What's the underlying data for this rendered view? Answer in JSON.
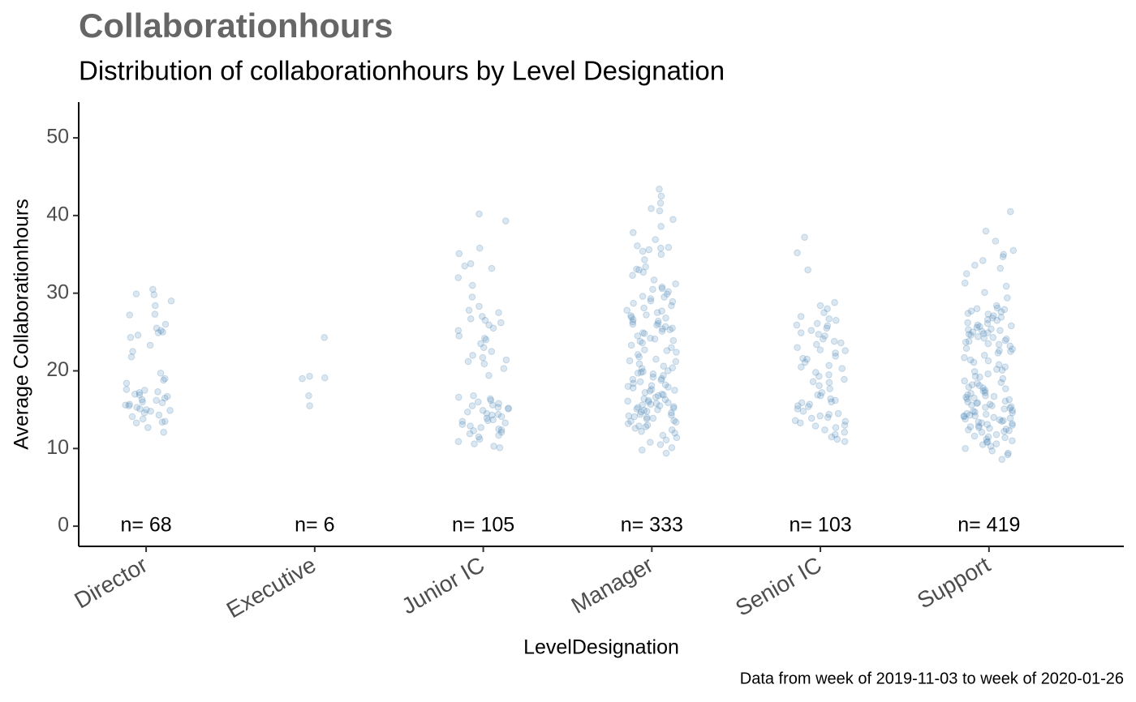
{
  "chart_data": {
    "type": "strip",
    "title": "Collaborationhours",
    "subtitle": "Distribution of collaborationhours by Level Designation",
    "y_label": "Average Collaborationhours",
    "x_label": "LevelDesignation",
    "caption": "Data from week of 2019-11-03 to week of 2020-01-26",
    "color": "#4682b4",
    "ylim": [
      -2.6,
      54.6
    ],
    "yticks": [
      0,
      10,
      20,
      30,
      40,
      50
    ],
    "categories": [
      "Director",
      "Executive",
      "Junior IC",
      "Manager",
      "Senior IC",
      "Support"
    ],
    "n_labels": [
      "n= 68",
      "n= 6",
      "n= 105",
      "n= 333",
      "n= 103",
      "n= 419"
    ],
    "points": [
      [
        29.8,
        29.9,
        30.5,
        29,
        28.4,
        27.3,
        27.2,
        26,
        25.5,
        25,
        24.9,
        24.6,
        25.2,
        24.3,
        23.3,
        22.5,
        21.8,
        19.7,
        19,
        18.8,
        18.4,
        17.5,
        17.3,
        17.2,
        17,
        16.9,
        16.7,
        16.5,
        16.3,
        16,
        15.9,
        15.7,
        15.5,
        15.3,
        15.1,
        15,
        14.9,
        14.6,
        14.3,
        14.1,
        13.8,
        13.5,
        13.4,
        13.3,
        12.7,
        12.1,
        16.2,
        17.6,
        14.8,
        15.6
      ],
      [
        24.3,
        19.3,
        19.1,
        19,
        16.8,
        15.5
      ],
      [
        40.2,
        39.3,
        35.8,
        35.1,
        33.8,
        33.5,
        33.2,
        32,
        31,
        29.5,
        28.3,
        27.8,
        27.5,
        27,
        26.5,
        26.2,
        25.9,
        25.5,
        24.5,
        24,
        23.5,
        23,
        22.5,
        22,
        21.7,
        21.4,
        21.2,
        20.9,
        20.3,
        19.4,
        16.6,
        16.4,
        16.2,
        16,
        15.8,
        15.6,
        15.5,
        15.3,
        15.1,
        14.9,
        14.7,
        14.5,
        14.3,
        14.1,
        13.9,
        13.7,
        13.5,
        13.3,
        13.1,
        12.9,
        12.7,
        12.5,
        12.3,
        12.1,
        11.9,
        11.7,
        11.5,
        11.2,
        10.9,
        10.6,
        10.3,
        10.1,
        14.4,
        15.2,
        13.6,
        12.4,
        16.8,
        25.2,
        26.7,
        24.2
      ],
      [
        43.4,
        42.5,
        41.6,
        40.9,
        40.6,
        39.5,
        38.6,
        37.8,
        36.9,
        36.1,
        35.8,
        35.6,
        35.4,
        35,
        34.3,
        33.4,
        33,
        32.7,
        32.3,
        31.7,
        31.2,
        30.8,
        30.5,
        30.2,
        29.9,
        29.6,
        29.3,
        29,
        28.7,
        28.4,
        28.1,
        27.8,
        27.5,
        27.2,
        26.9,
        26.6,
        26.3,
        26,
        25.7,
        25.4,
        25.1,
        24.8,
        24.5,
        24.2,
        23.9,
        23.6,
        23.3,
        23,
        22.7,
        22.4,
        22.1,
        21.8,
        21.5,
        21.2,
        20.9,
        20.6,
        20.3,
        20,
        19.8,
        19.6,
        19.4,
        19.2,
        19,
        18.8,
        18.6,
        18.4,
        18.2,
        18,
        17.8,
        17.6,
        17.4,
        17.2,
        17,
        16.8,
        16.6,
        16.4,
        16.2,
        16,
        15.8,
        15.6,
        15.4,
        15.2,
        15,
        14.8,
        14.6,
        14.4,
        14.2,
        14,
        13.8,
        13.6,
        13.4,
        13.2,
        13,
        12.8,
        12.6,
        12.4,
        12.2,
        12,
        11.7,
        11.4,
        11.1,
        10.8,
        10.5,
        10.1,
        9.8,
        9.4,
        25.9,
        26.4,
        24.1,
        27.1,
        28.9,
        29.5,
        16.1,
        15.5,
        14.7,
        15.9,
        16.9,
        17.5,
        13.9,
        14.3,
        15.1,
        18.9,
        19.7,
        20.4,
        22.6,
        23.8,
        24.9,
        25.3,
        26.8,
        27.7,
        30.6,
        33.1,
        35.9,
        17.9,
        16.3,
        15.3,
        14.1,
        13.5,
        12.9,
        14.9,
        15.7,
        18.1,
        21.3,
        19.9,
        26.1,
        25.5
      ],
      [
        37.2,
        35.2,
        33,
        28.8,
        28.4,
        28,
        27.5,
        27,
        26.5,
        26.1,
        25.8,
        25.5,
        25.2,
        24.9,
        24.5,
        24.1,
        23.8,
        23.4,
        23,
        22.6,
        22.3,
        21.9,
        21.5,
        21.1,
        20.7,
        20.3,
        19.8,
        19.3,
        18.9,
        18.5,
        18.1,
        17.7,
        17.2,
        16.8,
        16.4,
        16,
        15.7,
        15.4,
        15.1,
        14.8,
        14.5,
        14.2,
        13.9,
        13.6,
        13.3,
        13,
        12.7,
        12.4,
        12.1,
        11.8,
        11.5,
        11.2,
        10.9,
        14,
        14.4,
        15.9,
        16.2,
        18.6,
        19.5,
        22.7,
        23.6,
        24.7,
        25.9,
        26.7,
        20.5,
        21.6,
        13.5,
        12.9,
        16.9,
        15.5
      ],
      [
        40.5,
        38,
        36.7,
        35.5,
        35,
        34.7,
        34.2,
        33.6,
        33.2,
        32.5,
        31.3,
        30.9,
        30.1,
        29.4,
        28.4,
        28,
        27.7,
        27.4,
        27.1,
        26.8,
        26.5,
        26.2,
        25.9,
        25.6,
        25.3,
        25,
        24.7,
        24.4,
        24.1,
        23.8,
        23.5,
        23.2,
        22.9,
        22.6,
        22.3,
        22,
        21.7,
        21.4,
        21.1,
        20.8,
        20.5,
        20.2,
        19.9,
        19.6,
        19.3,
        19,
        18.7,
        18.4,
        18.1,
        17.8,
        17.5,
        17.2,
        16.9,
        16.6,
        16.3,
        16,
        15.7,
        15.4,
        15.1,
        14.8,
        14.5,
        14.2,
        13.9,
        13.6,
        13.3,
        13,
        12.7,
        12.4,
        12.1,
        11.8,
        11.5,
        11.2,
        10.9,
        10.6,
        10.3,
        10,
        9.7,
        9.4,
        8.6,
        9.2,
        25.1,
        24.9,
        24.6,
        25.4,
        25.7,
        26.1,
        27.9,
        27.3,
        24.2,
        23.9,
        22.8,
        21.3,
        17.4,
        16.8,
        16.1,
        15.5,
        15.2,
        14.9,
        14.6,
        14.3,
        14,
        13.7,
        13.4,
        13.1,
        12.8,
        12.5,
        15.9,
        16.4,
        17.1,
        17.7,
        18.2,
        14.1,
        13.5,
        12.9,
        12.3,
        11.6,
        11,
        10.5,
        14.7,
        15.3,
        16.5,
        24.8,
        25.2,
        26.6,
        27.6,
        28.1,
        23.4,
        22.5,
        20.1,
        19.2,
        18.5,
        17.9,
        16.7,
        15.8,
        14.4,
        13.8,
        13.2,
        12.6,
        12.2,
        11.4,
        10.8,
        26.9,
        24.3,
        23.7,
        25.8,
        15.6,
        14.2
      ]
    ]
  }
}
